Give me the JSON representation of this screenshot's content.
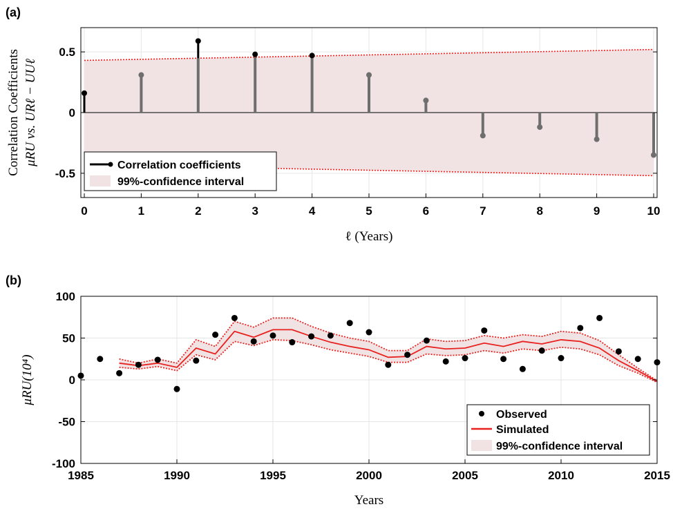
{
  "chart_data": [
    {
      "panel_label": "(a)",
      "type": "stem",
      "xlabel": "ℓ (Years)",
      "ylabel_line1": "Correlation Coefficients",
      "ylabel_line2": "μRU vs. URℓ − UUℓ",
      "xlim": [
        0,
        10
      ],
      "ylim": [
        -0.7,
        0.7
      ],
      "xticks": [
        0,
        1,
        2,
        3,
        4,
        5,
        6,
        7,
        8,
        9,
        10
      ],
      "yticks": [
        -0.5,
        0,
        0.5
      ],
      "ytick_labels": [
        "-0.5",
        "0",
        "0.5"
      ],
      "grid": true,
      "x": [
        0,
        1,
        2,
        3,
        4,
        5,
        6,
        7,
        8,
        9,
        10
      ],
      "values": [
        0.16,
        0.31,
        0.59,
        0.48,
        0.47,
        0.31,
        0.1,
        -0.19,
        -0.12,
        -0.22,
        -0.35
      ],
      "ci_upper": [
        0.43,
        0.52
      ],
      "ci_lower": [
        -0.43,
        -0.52
      ],
      "legend": {
        "position": "bottom-left",
        "entries": [
          "Correlation coefficients",
          "99%-confidence interval"
        ]
      },
      "colors": {
        "stem": "#6e6e6e",
        "stem_dark": "#000000",
        "band": "#f1e3e3",
        "ci_line": "#e8201e"
      }
    },
    {
      "panel_label": "(b)",
      "type": "line",
      "xlabel": "Years",
      "ylabel": "μRU(10⁴)",
      "xlim": [
        1985,
        2015
      ],
      "ylim": [
        -100,
        100
      ],
      "xticks": [
        1985,
        1990,
        1995,
        2000,
        2005,
        2010,
        2015
      ],
      "yticks": [
        -100,
        -50,
        0,
        50,
        100
      ],
      "grid": true,
      "series": [
        {
          "name": "Observed",
          "type": "scatter",
          "x": [
            1985,
            1986,
            1987,
            1988,
            1989,
            1990,
            1991,
            1992,
            1993,
            1994,
            1995,
            1996,
            1997,
            1998,
            1999,
            2000,
            2001,
            2002,
            2003,
            2004,
            2005,
            2006,
            2007,
            2008,
            2009,
            2010,
            2011,
            2012,
            2013,
            2014,
            2015
          ],
          "values": [
            5,
            25,
            8,
            18,
            24,
            -11,
            23,
            54,
            74,
            46,
            53,
            45,
            52,
            53,
            68,
            57,
            18,
            30,
            47,
            22,
            26,
            59,
            25,
            13,
            35,
            26,
            62,
            74,
            34,
            25,
            21
          ]
        },
        {
          "name": "Simulated",
          "type": "line",
          "x": [
            1987,
            1988,
            1989,
            1990,
            1991,
            1992,
            1993,
            1994,
            1995,
            1996,
            1997,
            1998,
            1999,
            2000,
            2001,
            2002,
            2003,
            2004,
            2005,
            2006,
            2007,
            2008,
            2009,
            2010,
            2011,
            2012,
            2013,
            2014,
            2015
          ],
          "values": [
            20,
            17,
            20,
            15,
            38,
            31,
            58,
            51,
            60,
            60,
            52,
            45,
            40,
            36,
            27,
            28,
            40,
            37,
            38,
            44,
            40,
            46,
            43,
            48,
            46,
            38,
            23,
            11,
            -2
          ]
        },
        {
          "name": "99%-confidence interval",
          "type": "band",
          "x": [
            1987,
            1988,
            1989,
            1990,
            1991,
            1992,
            1993,
            1994,
            1995,
            1996,
            1997,
            1998,
            1999,
            2000,
            2001,
            2002,
            2003,
            2004,
            2005,
            2006,
            2007,
            2008,
            2009,
            2010,
            2011,
            2012,
            2013,
            2014,
            2015
          ],
          "upper": [
            25,
            20,
            25,
            20,
            48,
            40,
            70,
            63,
            74,
            74,
            64,
            56,
            50,
            46,
            35,
            35,
            49,
            46,
            47,
            53,
            50,
            54,
            52,
            58,
            56,
            47,
            30,
            14,
            -1
          ],
          "lower": [
            15,
            13,
            16,
            11,
            30,
            24,
            46,
            41,
            48,
            47,
            42,
            36,
            32,
            28,
            21,
            21,
            31,
            29,
            30,
            35,
            32,
            37,
            35,
            39,
            37,
            30,
            17,
            8,
            -3
          ]
        }
      ],
      "legend": {
        "position": "bottom-right",
        "entries": [
          "Observed",
          "Simulated",
          "99%-confidence interval"
        ]
      },
      "colors": {
        "marker": "#000000",
        "line": "#e8201e",
        "band": "#f1e3e3",
        "ci_line": "#e8201e"
      }
    }
  ]
}
